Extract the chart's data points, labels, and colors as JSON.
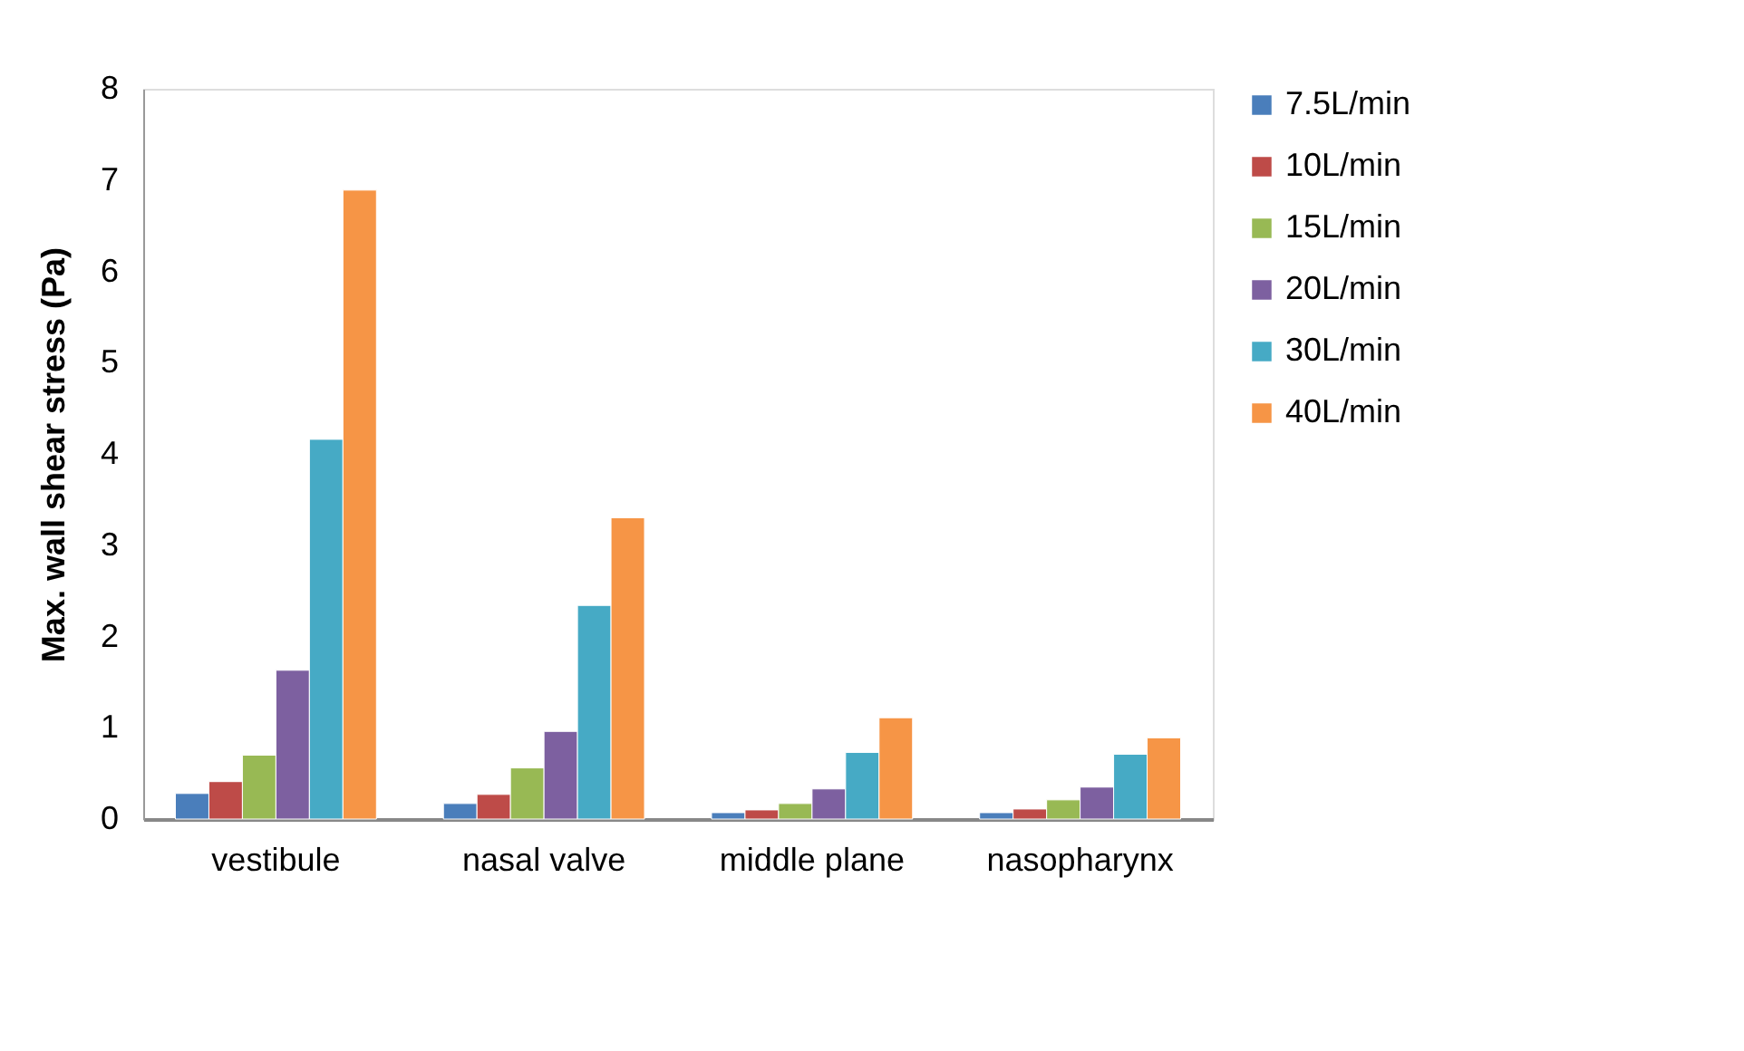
{
  "chart_data": {
    "type": "bar",
    "ylabel": "Max. wall shear stress (Pa)",
    "categories": [
      "vestibule",
      "nasal valve",
      "middle plane",
      "nasopharynx"
    ],
    "ylim": [
      0,
      8
    ],
    "yticks": [
      0,
      1,
      2,
      3,
      4,
      5,
      6,
      7,
      8
    ],
    "grid": false,
    "legend": "right",
    "series": [
      {
        "name": "7.5L/min",
        "color": "#4a7ebb",
        "values": [
          0.28,
          0.17,
          0.07,
          0.07
        ]
      },
      {
        "name": "10L/min",
        "color": "#be4b48",
        "values": [
          0.41,
          0.27,
          0.1,
          0.11
        ]
      },
      {
        "name": "15L/min",
        "color": "#98b954",
        "values": [
          0.7,
          0.56,
          0.17,
          0.21
        ]
      },
      {
        "name": "20L/min",
        "color": "#7d60a0",
        "values": [
          1.63,
          0.96,
          0.33,
          0.35
        ]
      },
      {
        "name": "30L/min",
        "color": "#46aac5",
        "values": [
          4.16,
          2.34,
          0.73,
          0.71
        ]
      },
      {
        "name": "40L/min",
        "color": "#f69546",
        "values": [
          6.89,
          3.3,
          1.11,
          0.89
        ]
      }
    ]
  }
}
